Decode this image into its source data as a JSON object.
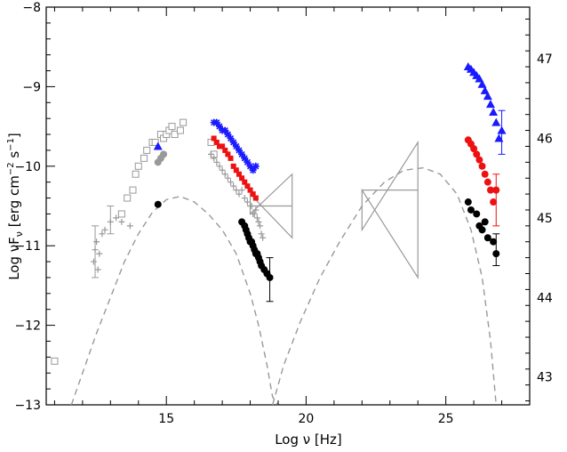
{
  "chart_data": {
    "type": "scatter",
    "xlabel": "Log ν [Hz]",
    "ylabel": "Log νF",
    "ylabel_sub": "ν",
    "ylabel_units": "[erg cm",
    "ylabel_units_exp": "−2",
    "ylabel_units_tail": " s",
    "ylabel_units_exp2": "−1",
    "ylabel_units_close": "]",
    "xlim": [
      10.7,
      28.0
    ],
    "ylim": [
      -13,
      -8
    ],
    "y2lim": [
      42.65,
      47.65
    ],
    "x_ticks": [
      {
        "v": 15,
        "label": "15"
      },
      {
        "v": 20,
        "label": "20"
      },
      {
        "v": 25,
        "label": "25"
      }
    ],
    "y_ticks": [
      {
        "v": -8,
        "label": "−8"
      },
      {
        "v": -9,
        "label": "−9"
      },
      {
        "v": -10,
        "label": "−10"
      },
      {
        "v": -11,
        "label": "−11"
      },
      {
        "v": -12,
        "label": "−12"
      },
      {
        "v": -13,
        "label": "−13"
      }
    ],
    "y2_ticks": [
      {
        "v": 43,
        "label": "43"
      },
      {
        "v": 44,
        "label": "44"
      },
      {
        "v": 45,
        "label": "45"
      },
      {
        "v": 46,
        "label": "46"
      },
      {
        "v": 47,
        "label": "47"
      }
    ],
    "colors": {
      "archival": "#999999",
      "blue": "#1a1aff",
      "red": "#ee1111",
      "black": "#000000",
      "model": "#999999"
    },
    "series": [
      {
        "color": "#999999",
        "marker": "open-square",
        "x": [
          11.0,
          13.4,
          13.6,
          13.8,
          13.9,
          14.0,
          14.2,
          14.3,
          14.5,
          14.6,
          14.8,
          14.9,
          15.0,
          15.1,
          15.2,
          15.3,
          15.5,
          15.6,
          16.6,
          16.7
        ],
        "y": [
          -12.45,
          -10.6,
          -10.4,
          -10.3,
          -10.1,
          -10.0,
          -9.9,
          -9.8,
          -9.7,
          -9.7,
          -9.6,
          -9.65,
          -9.6,
          -9.55,
          -9.5,
          -9.6,
          -9.55,
          -9.45,
          -9.7,
          -9.85
        ]
      },
      {
        "color": "#999999",
        "marker": "cross",
        "x": [
          12.4,
          12.45,
          12.5,
          12.55,
          12.6,
          12.7,
          12.8,
          13.0,
          13.2,
          13.4,
          13.7,
          16.6,
          16.7,
          16.8,
          16.9,
          17.0,
          17.1,
          17.2,
          17.3,
          17.4,
          17.5,
          17.6,
          17.7,
          17.8,
          17.9,
          18.0,
          18.05,
          18.1,
          18.15,
          18.2,
          18.25,
          18.3,
          18.35,
          18.4,
          18.45
        ],
        "y": [
          -11.2,
          -11.05,
          -10.95,
          -11.3,
          -11.1,
          -10.85,
          -10.8,
          -10.7,
          -10.65,
          -10.7,
          -10.75,
          -9.85,
          -9.9,
          -9.95,
          -10.0,
          -10.05,
          -10.1,
          -10.15,
          -10.2,
          -10.25,
          -10.3,
          -10.35,
          -10.3,
          -10.4,
          -10.45,
          -10.5,
          -10.5,
          -10.6,
          -10.6,
          -10.55,
          -10.65,
          -10.7,
          -10.75,
          -10.85,
          -10.9
        ]
      },
      {
        "color": "#999999",
        "marker": "filled-circle",
        "x": [
          14.7,
          14.8,
          14.9
        ],
        "y": [
          -9.95,
          -9.9,
          -9.85
        ]
      },
      {
        "color": "#1a1aff",
        "marker": "filled-triangle",
        "x": [
          14.7
        ],
        "y": [
          -9.75
        ]
      },
      {
        "color": "#1a1aff",
        "marker": "star",
        "x": [
          16.7,
          16.8,
          16.9,
          17.0,
          17.1,
          17.2,
          17.3,
          17.4,
          17.5,
          17.6,
          17.7,
          17.8,
          17.9,
          18.0,
          18.1,
          18.2
        ],
        "y": [
          -9.45,
          -9.45,
          -9.5,
          -9.55,
          -9.55,
          -9.6,
          -9.65,
          -9.7,
          -9.75,
          -9.8,
          -9.85,
          -9.9,
          -9.95,
          -10.0,
          -10.05,
          -10.0
        ]
      },
      {
        "color": "#ee1111",
        "marker": "filled-square",
        "x": [
          16.7,
          16.8,
          16.9,
          17.0,
          17.1,
          17.2,
          17.3,
          17.4,
          17.5,
          17.6,
          17.7,
          17.8,
          17.9,
          18.0,
          18.1,
          18.2
        ],
        "y": [
          -9.65,
          -9.7,
          -9.75,
          -9.75,
          -9.8,
          -9.85,
          -9.9,
          -10.0,
          -10.05,
          -10.1,
          -10.15,
          -10.2,
          -10.25,
          -10.3,
          -10.35,
          -10.4
        ]
      },
      {
        "color": "#000000",
        "marker": "filled-circle",
        "x": [
          14.7,
          17.7,
          17.8,
          17.85,
          17.9,
          17.95,
          18.0,
          18.05,
          18.1,
          18.15,
          18.2,
          18.25,
          18.3,
          18.35,
          18.4,
          18.5,
          18.6,
          18.7
        ],
        "y": [
          -10.48,
          -10.7,
          -10.75,
          -10.8,
          -10.85,
          -10.9,
          -10.95,
          -10.95,
          -11.0,
          -11.05,
          -11.1,
          -11.1,
          -11.15,
          -11.2,
          -11.25,
          -11.3,
          -11.35,
          -11.4
        ]
      },
      {
        "color": "#1a1aff",
        "marker": "filled-triangle",
        "x": [
          25.8,
          25.9,
          26.0,
          26.1,
          26.2,
          26.3,
          26.4,
          26.5,
          26.6,
          26.7,
          26.8,
          26.9,
          27.0
        ],
        "y": [
          -8.75,
          -8.78,
          -8.82,
          -8.86,
          -8.9,
          -8.97,
          -9.05,
          -9.12,
          -9.22,
          -9.32,
          -9.45,
          -9.65,
          -9.55
        ]
      },
      {
        "color": "#ee1111",
        "marker": "filled-circle",
        "x": [
          25.8,
          25.9,
          26.0,
          26.1,
          26.2,
          26.3,
          26.4,
          26.5,
          26.6,
          26.7,
          26.8
        ],
        "y": [
          -9.67,
          -9.72,
          -9.78,
          -9.85,
          -9.92,
          -10.0,
          -10.1,
          -10.2,
          -10.3,
          -10.45,
          -10.3
        ]
      },
      {
        "color": "#000000",
        "marker": "filled-circle",
        "x": [
          25.8,
          25.9,
          26.1,
          26.2,
          26.3,
          26.4,
          26.5,
          26.7,
          26.8
        ],
        "y": [
          -10.45,
          -10.55,
          -10.6,
          -10.75,
          -10.8,
          -10.7,
          -10.9,
          -10.95,
          -11.1
        ]
      }
    ],
    "error_bars": [
      {
        "color": "#999999",
        "x": 12.45,
        "y_low": -11.4,
        "y_high": -10.75
      },
      {
        "color": "#999999",
        "x": 13.0,
        "y_low": -10.85,
        "y_high": -10.5
      },
      {
        "color": "#1a1aff",
        "x": 27.0,
        "y_low": -9.85,
        "y_high": -9.3
      },
      {
        "color": "#ee1111",
        "x": 26.8,
        "y_low": -10.75,
        "y_high": -10.1
      },
      {
        "color": "#000000",
        "x": 18.7,
        "y_low": -11.7,
        "y_high": -11.15
      },
      {
        "color": "#000000",
        "x": 26.8,
        "y_low": -11.25,
        "y_high": -10.85
      }
    ],
    "bowties": [
      {
        "color": "#999999",
        "x1": 18.0,
        "x2": 19.5,
        "y_pivot": -10.5,
        "y1_low": -10.6,
        "y1_high": -10.35,
        "y2_low": -10.9,
        "y2_high": -10.1
      },
      {
        "color": "#999999",
        "x1": 22.0,
        "x2": 24.0,
        "y_pivot": -10.3,
        "y1_low": -10.8,
        "y1_high": -10.3,
        "y2_low": -11.4,
        "y2_high": -9.7
      }
    ],
    "model_curves": [
      {
        "color": "#999999",
        "style": "dashed",
        "x": [
          11.6,
          12.0,
          12.5,
          13.0,
          13.5,
          14.0,
          14.5,
          15.0,
          15.5,
          16.0,
          16.5,
          17.0,
          17.5,
          18.0,
          18.3,
          18.6,
          18.8,
          19.0
        ],
        "y": [
          -13.0,
          -12.6,
          -12.1,
          -11.65,
          -11.2,
          -10.85,
          -10.58,
          -10.42,
          -10.38,
          -10.45,
          -10.6,
          -10.8,
          -11.1,
          -11.6,
          -12.0,
          -12.5,
          -12.9,
          -13.0
        ]
      },
      {
        "color": "#999999",
        "style": "dashed",
        "x": [
          18.8,
          19.2,
          19.8,
          20.5,
          21.2,
          22.0,
          22.8,
          23.5,
          24.2,
          24.8,
          25.4,
          25.9,
          26.3,
          26.6,
          26.8
        ],
        "y": [
          -13.0,
          -12.5,
          -11.95,
          -11.4,
          -10.95,
          -10.5,
          -10.2,
          -10.05,
          -10.02,
          -10.1,
          -10.35,
          -10.8,
          -11.4,
          -12.2,
          -13.0
        ]
      }
    ]
  }
}
